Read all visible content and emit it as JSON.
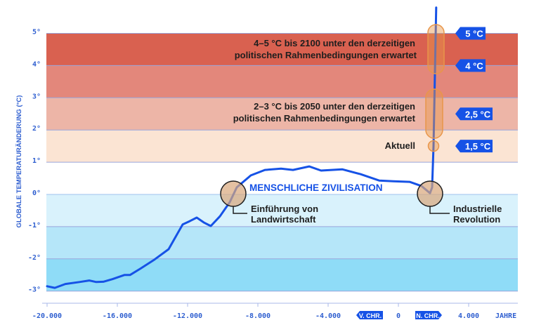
{
  "chart_data": {
    "type": "line",
    "ylabel": "GLOBALE TEMPERATURÄNDERUNG (°C)",
    "xlabel": "JAHRE",
    "xlim": [
      -20000,
      6800
    ],
    "ylim": [
      -3,
      5
    ],
    "x_ticks": [
      {
        "value": -20000,
        "label": "-20.000"
      },
      {
        "value": -16000,
        "label": "-16.000"
      },
      {
        "value": -12000,
        "label": "-12.000"
      },
      {
        "value": -8000,
        "label": "-8.000"
      },
      {
        "value": -4000,
        "label": "-4.000"
      },
      {
        "value": 0,
        "label": "0"
      },
      {
        "value": 4000,
        "label": "4.000"
      }
    ],
    "y_ticks": [
      {
        "value": 5,
        "label": "5°"
      },
      {
        "value": 4,
        "label": "4°"
      },
      {
        "value": 3,
        "label": "3°"
      },
      {
        "value": 2,
        "label": "2°"
      },
      {
        "value": 1,
        "label": "1°"
      },
      {
        "value": 0,
        "label": "0°"
      },
      {
        "value": -1,
        "label": "-1°"
      },
      {
        "value": -2,
        "label": "-2°"
      },
      {
        "value": -3,
        "label": "-3°"
      }
    ],
    "era_labels": {
      "bc": "V. CHR.",
      "ad": "N. CHR."
    },
    "bands": [
      {
        "from": 4,
        "to": 5,
        "color": "#d96150"
      },
      {
        "from": 3,
        "to": 4,
        "color": "#e3877b"
      },
      {
        "from": 2,
        "to": 3,
        "color": "#edb5a7"
      },
      {
        "from": 1,
        "to": 2,
        "color": "#fbe4d3"
      },
      {
        "from": 0,
        "to": 1,
        "color": "#ffffff"
      },
      {
        "from": -1,
        "to": 0,
        "color": "#d9f2fc"
      },
      {
        "from": -2,
        "to": -1,
        "color": "#b5e6f9"
      },
      {
        "from": -3,
        "to": -2,
        "color": "#8fdcf7"
      }
    ],
    "series": [
      {
        "color": "#1652e6",
        "x": [
          -20000,
          -19560,
          -18960,
          -18160,
          -17600,
          -17200,
          -16800,
          -16280,
          -15600,
          -15280,
          -14680,
          -13880,
          -13080,
          -12800,
          -12280,
          -11880,
          -11480,
          -11080,
          -10680,
          -10160,
          -9600,
          -9200,
          -8400,
          -7600,
          -6680,
          -6000,
          -5080,
          -4400,
          -3200,
          -2160,
          -1080,
          -280,
          640,
          1320,
          1800,
          1920,
          2000,
          2150
        ],
        "y": [
          -2.85,
          -2.9,
          -2.78,
          -2.72,
          -2.67,
          -2.72,
          -2.71,
          -2.63,
          -2.5,
          -2.5,
          -2.3,
          -2.02,
          -1.7,
          -1.43,
          -0.93,
          -0.83,
          -0.72,
          -0.87,
          -0.98,
          -0.68,
          -0.24,
          0.22,
          0.59,
          0.76,
          0.8,
          0.76,
          0.87,
          0.74,
          0.78,
          0.63,
          0.43,
          0.41,
          0.39,
          0.26,
          0.04,
          0.22,
          1.5,
          5.8
        ]
      }
    ],
    "annotations": {
      "band_4_5": [
        "4–5 °C bis 2100 unter den derzeitigen",
        "politischen Rahmenbedingungen erwartet"
      ],
      "band_2_3": [
        "2–3 °C bis 2050 unter den derzeitigen",
        "politischen Rahmenbedingungen erwartet"
      ],
      "current": "Aktuell",
      "civilization": "MENSCHLICHE ZIVILISATION",
      "agriculture": [
        "Einführung von",
        "Landwirtschaft"
      ],
      "industrial": [
        "Industrielle",
        "Revolution"
      ]
    },
    "markers": [
      {
        "value": 5,
        "label": "5 °C"
      },
      {
        "value": 4,
        "label": "4 °C"
      },
      {
        "value": 2.5,
        "label": "2,5 °C"
      },
      {
        "value": 1.5,
        "label": "1,5 °C"
      }
    ],
    "colors": {
      "axis_text": "#2f5fd0",
      "highlight": "#e8964a",
      "tag": "#1652e6"
    },
    "grid": false,
    "legend": "none"
  }
}
